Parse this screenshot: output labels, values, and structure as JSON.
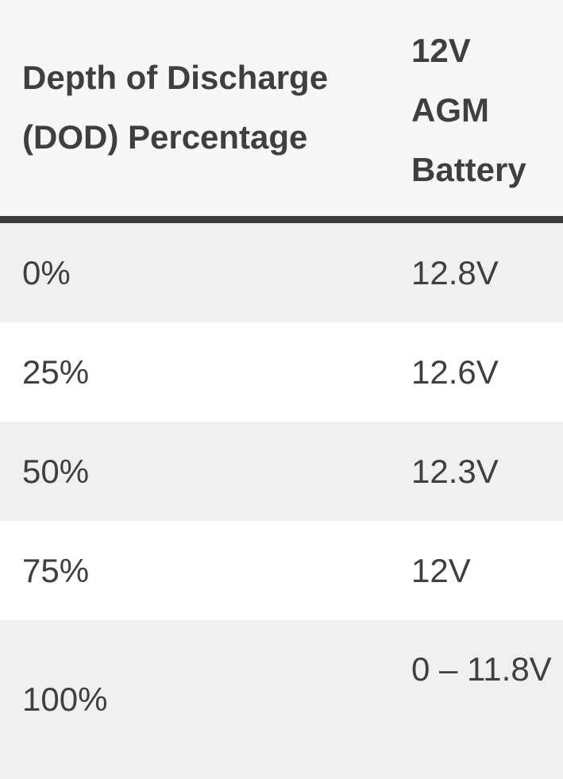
{
  "table": {
    "headers": [
      "Depth of Discharge (DOD) Percentage",
      "12V AGM Battery"
    ],
    "rows": [
      {
        "dod": "0%",
        "voltage": "12.8V"
      },
      {
        "dod": "25%",
        "voltage": "12.6V"
      },
      {
        "dod": "50%",
        "voltage": "12.3V"
      },
      {
        "dod": "75%",
        "voltage": "12V"
      },
      {
        "dod": "100%",
        "voltage": "0 – 11.8V"
      }
    ]
  },
  "colors": {
    "header_bg": "#f7f7f7",
    "header_rule": "#3a3a3a",
    "shaded_row": "#f0f0f0",
    "text": "#3f3f3f"
  }
}
